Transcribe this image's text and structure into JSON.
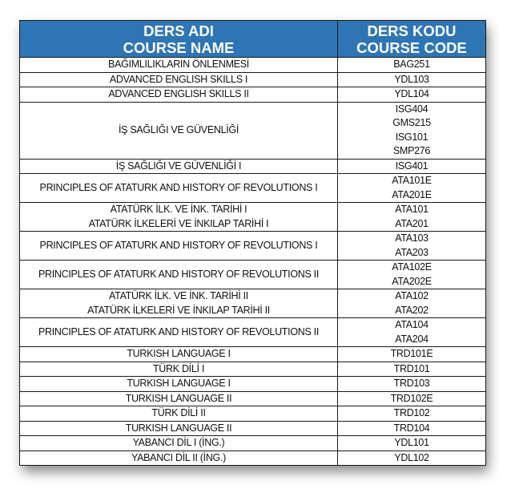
{
  "header": {
    "name_line1": "DERS ADI",
    "name_line2": "COURSE NAME",
    "code_line1": "DERS KODU",
    "code_line2": "COURSE CODE"
  },
  "rows": [
    {
      "name": [
        "BAĞIMLILIKLARIN ÖNLENMESİ"
      ],
      "codes": [
        "BAG251"
      ]
    },
    {
      "name": [
        "ADVANCED ENGLISH SKILLS I"
      ],
      "codes": [
        "YDL103"
      ]
    },
    {
      "name": [
        "ADVANCED ENGLISH SKILLS II"
      ],
      "codes": [
        "YDL104"
      ]
    },
    {
      "name": [
        "İŞ SAĞLIĞI VE GÜVENLİĞİ"
      ],
      "codes": [
        "ISG404",
        "GMS215",
        "ISG101",
        "SMP276"
      ]
    },
    {
      "name": [
        "İŞ SAĞLIĞI VE GÜVENLİĞİ I"
      ],
      "codes": [
        "ISG401"
      ]
    },
    {
      "name": [
        "PRINCIPLES OF ATATURK AND HISTORY OF REVOLUTIONS I"
      ],
      "codes": [
        "ATA101E",
        "ATA201E"
      ]
    },
    {
      "name": [
        "ATATÜRK İLK. VE İNK. TARİHİ I",
        "ATATÜRK İLKELERİ VE İNKILAP TARİHİ I"
      ],
      "codes": [
        "ATA101",
        "ATA201"
      ]
    },
    {
      "name": [
        "PRINCIPLES OF ATATURK AND HISTORY OF REVOLUTIONS I"
      ],
      "codes": [
        "ATA103",
        "ATA203"
      ]
    },
    {
      "name": [
        "PRINCIPLES OF ATATURK AND HISTORY OF REVOLUTIONS II"
      ],
      "codes": [
        "ATA102E",
        "ATA202E"
      ]
    },
    {
      "name": [
        "ATATÜRK İLK. VE İNK. TARİHİ II",
        "ATATÜRK İLKELERİ VE İNKILAP TARİHİ II"
      ],
      "codes": [
        "ATA102",
        "ATA202"
      ]
    },
    {
      "name": [
        "PRINCIPLES OF ATATURK AND HISTORY OF REVOLUTIONS II"
      ],
      "codes": [
        "ATA104",
        "ATA204"
      ]
    },
    {
      "name": [
        "TURKISH LANGUAGE I"
      ],
      "codes": [
        "TRD101E"
      ]
    },
    {
      "name": [
        "TÜRK DİLİ I"
      ],
      "codes": [
        "TRD101"
      ]
    },
    {
      "name": [
        "TURKISH LANGUAGE I"
      ],
      "codes": [
        "TRD103"
      ]
    },
    {
      "name": [
        "TURKISH LANGUAGE II"
      ],
      "codes": [
        "TRD102E"
      ]
    },
    {
      "name": [
        "TÜRK DİLİ II"
      ],
      "codes": [
        "TRD102"
      ]
    },
    {
      "name": [
        "TURKISH LANGUAGE II"
      ],
      "codes": [
        "TRD104"
      ]
    },
    {
      "name": [
        "YABANCI DİL I (İNG.)"
      ],
      "codes": [
        "YDL101"
      ]
    },
    {
      "name": [
        "YABANCI DİL II (İNG.)"
      ],
      "codes": [
        "YDL102"
      ]
    }
  ]
}
